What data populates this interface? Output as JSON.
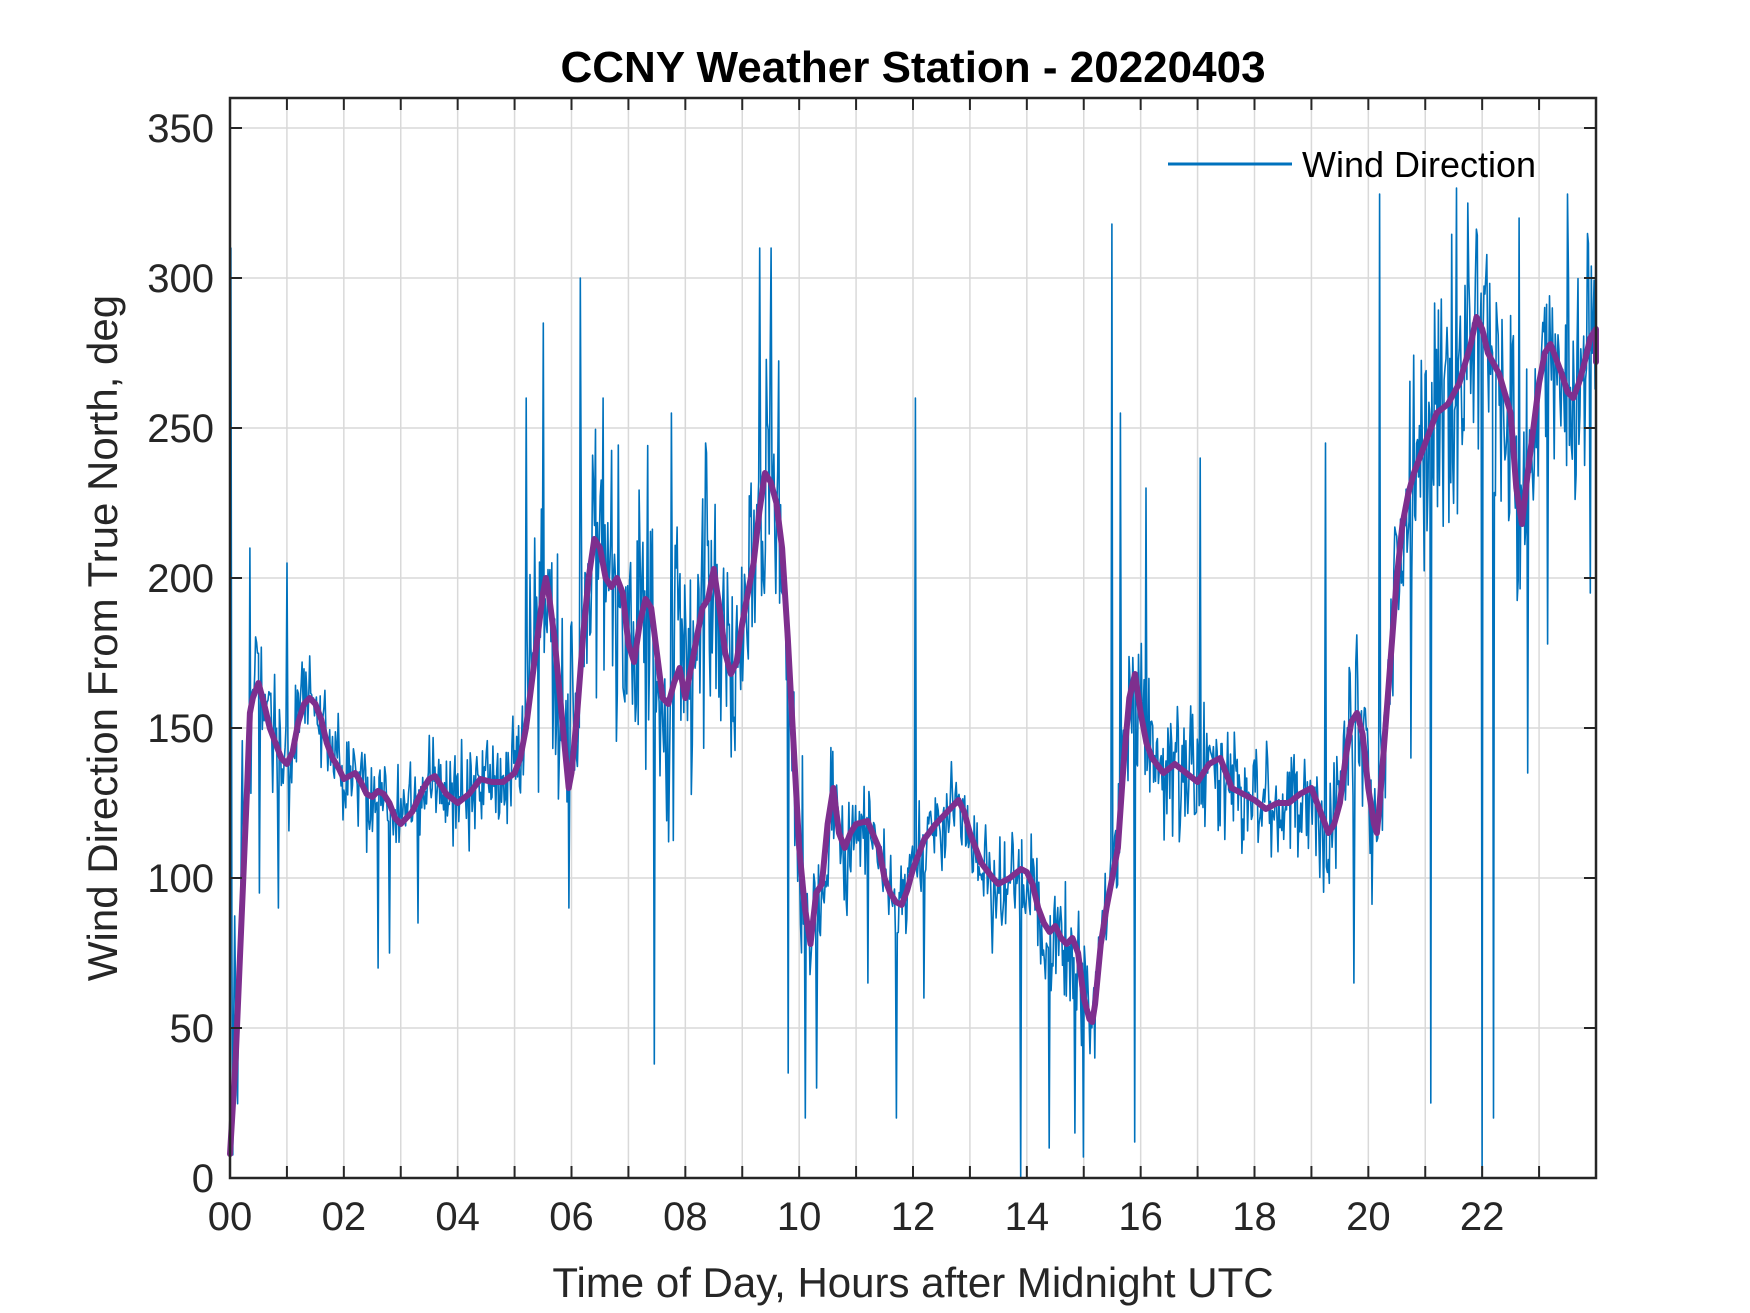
{
  "chart_data": {
    "type": "line",
    "title": "CCNY Weather Station - 20220403",
    "xlabel": "Time of Day, Hours after Midnight UTC",
    "ylabel": "Wind Direction From True North, deg",
    "xlim": [
      0,
      24
    ],
    "ylim": [
      0,
      360
    ],
    "x_ticks": [
      0,
      2,
      4,
      6,
      8,
      10,
      12,
      14,
      16,
      18,
      20,
      22
    ],
    "x_tick_labels": [
      "00",
      "02",
      "04",
      "06",
      "08",
      "10",
      "12",
      "14",
      "16",
      "18",
      "20",
      "22"
    ],
    "y_ticks": [
      0,
      50,
      100,
      150,
      200,
      250,
      300,
      350
    ],
    "y_tick_labels": [
      "0",
      "50",
      "100",
      "150",
      "200",
      "250",
      "300",
      "350"
    ],
    "grid": true,
    "minor_x_grid_step": 1,
    "legend": {
      "position": "top-right",
      "entries": [
        "Wind Direction"
      ]
    },
    "series": [
      {
        "name": "Wind Direction",
        "color": "#0072BD",
        "spread": [
          [
            0.0,
            150
          ],
          [
            0.25,
            80
          ],
          [
            0.5,
            30
          ],
          [
            1.0,
            35
          ],
          [
            1.5,
            25
          ],
          [
            2.0,
            20
          ],
          [
            3.0,
            25
          ],
          [
            4.0,
            22
          ],
          [
            5.0,
            25
          ],
          [
            5.5,
            70
          ],
          [
            6.0,
            75
          ],
          [
            6.5,
            70
          ],
          [
            7.0,
            70
          ],
          [
            8.0,
            70
          ],
          [
            9.0,
            75
          ],
          [
            9.5,
            70
          ],
          [
            10.0,
            60
          ],
          [
            10.5,
            30
          ],
          [
            11.0,
            25
          ],
          [
            12.0,
            25
          ],
          [
            13.0,
            22
          ],
          [
            14.0,
            30
          ],
          [
            15.0,
            35
          ],
          [
            16.0,
            35
          ],
          [
            17.0,
            30
          ],
          [
            18.0,
            28
          ],
          [
            19.0,
            28
          ],
          [
            20.0,
            45
          ],
          [
            21.0,
            60
          ],
          [
            22.0,
            65
          ],
          [
            23.0,
            55
          ],
          [
            24.0,
            55
          ]
        ],
        "spikes": [
          [
            0.02,
            310
          ],
          [
            0.35,
            210
          ],
          [
            0.52,
            95
          ],
          [
            0.85,
            90
          ],
          [
            1.0,
            205
          ],
          [
            2.6,
            70
          ],
          [
            2.8,
            75
          ],
          [
            3.3,
            85
          ],
          [
            5.2,
            260
          ],
          [
            5.5,
            285
          ],
          [
            5.95,
            90
          ],
          [
            6.15,
            300
          ],
          [
            6.55,
            260
          ],
          [
            7.45,
            38
          ],
          [
            7.75,
            255
          ],
          [
            8.35,
            245
          ],
          [
            9.3,
            310
          ],
          [
            9.5,
            310
          ],
          [
            9.8,
            35
          ],
          [
            10.1,
            20
          ],
          [
            10.3,
            30
          ],
          [
            11.2,
            65
          ],
          [
            11.7,
            20
          ],
          [
            12.05,
            260
          ],
          [
            12.2,
            60
          ],
          [
            13.4,
            75
          ],
          [
            13.9,
            0
          ],
          [
            14.4,
            10
          ],
          [
            14.85,
            15
          ],
          [
            15.0,
            7
          ],
          [
            15.2,
            40
          ],
          [
            15.5,
            318
          ],
          [
            15.65,
            255
          ],
          [
            15.9,
            12
          ],
          [
            16.1,
            230
          ],
          [
            17.05,
            240
          ],
          [
            19.25,
            245
          ],
          [
            19.75,
            65
          ],
          [
            20.2,
            328
          ],
          [
            20.75,
            140
          ],
          [
            21.1,
            25
          ],
          [
            21.55,
            330
          ],
          [
            21.75,
            325
          ],
          [
            22.0,
            0
          ],
          [
            22.2,
            20
          ],
          [
            22.8,
            135
          ],
          [
            22.65,
            320
          ],
          [
            23.15,
            178
          ],
          [
            23.5,
            328
          ],
          [
            23.9,
            195
          ]
        ]
      },
      {
        "name": "",
        "color": "#7E2F8E",
        "points": [
          [
            0.0,
            8
          ],
          [
            0.1,
            40
          ],
          [
            0.2,
            85
          ],
          [
            0.3,
            130
          ],
          [
            0.35,
            155
          ],
          [
            0.4,
            160
          ],
          [
            0.5,
            165
          ],
          [
            0.6,
            158
          ],
          [
            0.7,
            150
          ],
          [
            0.8,
            145
          ],
          [
            0.9,
            140
          ],
          [
            1.0,
            138
          ],
          [
            1.1,
            142
          ],
          [
            1.2,
            152
          ],
          [
            1.3,
            158
          ],
          [
            1.4,
            160
          ],
          [
            1.5,
            158
          ],
          [
            1.6,
            153
          ],
          [
            1.7,
            145
          ],
          [
            1.8,
            140
          ],
          [
            1.9,
            137
          ],
          [
            2.0,
            133
          ],
          [
            2.1,
            134
          ],
          [
            2.2,
            135
          ],
          [
            2.3,
            132
          ],
          [
            2.4,
            128
          ],
          [
            2.5,
            127
          ],
          [
            2.6,
            129
          ],
          [
            2.7,
            128
          ],
          [
            2.8,
            125
          ],
          [
            2.9,
            120
          ],
          [
            3.0,
            118
          ],
          [
            3.2,
            122
          ],
          [
            3.4,
            130
          ],
          [
            3.5,
            133
          ],
          [
            3.6,
            134
          ],
          [
            3.8,
            128
          ],
          [
            4.0,
            125
          ],
          [
            4.2,
            128
          ],
          [
            4.4,
            133
          ],
          [
            4.6,
            132
          ],
          [
            4.8,
            132
          ],
          [
            5.0,
            135
          ],
          [
            5.1,
            140
          ],
          [
            5.2,
            150
          ],
          [
            5.3,
            165
          ],
          [
            5.4,
            180
          ],
          [
            5.5,
            195
          ],
          [
            5.55,
            200
          ],
          [
            5.6,
            195
          ],
          [
            5.7,
            180
          ],
          [
            5.8,
            160
          ],
          [
            5.9,
            140
          ],
          [
            5.95,
            130
          ],
          [
            6.0,
            135
          ],
          [
            6.1,
            155
          ],
          [
            6.2,
            180
          ],
          [
            6.3,
            200
          ],
          [
            6.4,
            213
          ],
          [
            6.5,
            210
          ],
          [
            6.6,
            200
          ],
          [
            6.7,
            197
          ],
          [
            6.8,
            200
          ],
          [
            6.9,
            195
          ],
          [
            7.0,
            178
          ],
          [
            7.1,
            172
          ],
          [
            7.2,
            185
          ],
          [
            7.3,
            193
          ],
          [
            7.4,
            190
          ],
          [
            7.5,
            175
          ],
          [
            7.6,
            160
          ],
          [
            7.7,
            158
          ],
          [
            7.8,
            165
          ],
          [
            7.9,
            170
          ],
          [
            8.0,
            160
          ],
          [
            8.1,
            170
          ],
          [
            8.2,
            180
          ],
          [
            8.3,
            190
          ],
          [
            8.4,
            193
          ],
          [
            8.5,
            203
          ],
          [
            8.6,
            190
          ],
          [
            8.7,
            175
          ],
          [
            8.8,
            168
          ],
          [
            8.9,
            172
          ],
          [
            9.0,
            185
          ],
          [
            9.1,
            195
          ],
          [
            9.2,
            205
          ],
          [
            9.3,
            222
          ],
          [
            9.4,
            235
          ],
          [
            9.5,
            232
          ],
          [
            9.6,
            225
          ],
          [
            9.7,
            210
          ],
          [
            9.8,
            180
          ],
          [
            9.9,
            145
          ],
          [
            10.0,
            110
          ],
          [
            10.1,
            90
          ],
          [
            10.2,
            78
          ],
          [
            10.3,
            95
          ],
          [
            10.4,
            98
          ],
          [
            10.5,
            118
          ],
          [
            10.6,
            130
          ],
          [
            10.7,
            115
          ],
          [
            10.8,
            110
          ],
          [
            10.9,
            115
          ],
          [
            11.0,
            118
          ],
          [
            11.2,
            119
          ],
          [
            11.4,
            110
          ],
          [
            11.5,
            100
          ],
          [
            11.6,
            95
          ],
          [
            11.7,
            92
          ],
          [
            11.8,
            91
          ],
          [
            11.9,
            96
          ],
          [
            12.0,
            103
          ],
          [
            12.2,
            113
          ],
          [
            12.4,
            118
          ],
          [
            12.6,
            122
          ],
          [
            12.8,
            126
          ],
          [
            12.9,
            122
          ],
          [
            13.0,
            115
          ],
          [
            13.2,
            105
          ],
          [
            13.4,
            100
          ],
          [
            13.5,
            98
          ],
          [
            13.7,
            100
          ],
          [
            13.9,
            103
          ],
          [
            14.0,
            102
          ],
          [
            14.1,
            98
          ],
          [
            14.2,
            90
          ],
          [
            14.3,
            85
          ],
          [
            14.4,
            82
          ],
          [
            14.5,
            84
          ],
          [
            14.6,
            80
          ],
          [
            14.7,
            78
          ],
          [
            14.8,
            80
          ],
          [
            14.9,
            75
          ],
          [
            15.0,
            60
          ],
          [
            15.1,
            53
          ],
          [
            15.15,
            52
          ],
          [
            15.2,
            58
          ],
          [
            15.3,
            78
          ],
          [
            15.4,
            90
          ],
          [
            15.5,
            100
          ],
          [
            15.6,
            110
          ],
          [
            15.7,
            138
          ],
          [
            15.8,
            160
          ],
          [
            15.9,
            168
          ],
          [
            16.0,
            155
          ],
          [
            16.1,
            145
          ],
          [
            16.2,
            140
          ],
          [
            16.4,
            135
          ],
          [
            16.6,
            138
          ],
          [
            16.8,
            135
          ],
          [
            17.0,
            132
          ],
          [
            17.2,
            138
          ],
          [
            17.4,
            140
          ],
          [
            17.6,
            130
          ],
          [
            17.8,
            128
          ],
          [
            18.0,
            126
          ],
          [
            18.2,
            123
          ],
          [
            18.4,
            125
          ],
          [
            18.6,
            125
          ],
          [
            18.8,
            128
          ],
          [
            19.0,
            130
          ],
          [
            19.2,
            120
          ],
          [
            19.3,
            115
          ],
          [
            19.4,
            118
          ],
          [
            19.5,
            125
          ],
          [
            19.6,
            140
          ],
          [
            19.7,
            152
          ],
          [
            19.8,
            155
          ],
          [
            19.9,
            148
          ],
          [
            20.0,
            130
          ],
          [
            20.1,
            118
          ],
          [
            20.15,
            115
          ],
          [
            20.2,
            125
          ],
          [
            20.3,
            150
          ],
          [
            20.4,
            175
          ],
          [
            20.5,
            200
          ],
          [
            20.6,
            218
          ],
          [
            20.7,
            228
          ],
          [
            20.8,
            235
          ],
          [
            21.0,
            245
          ],
          [
            21.2,
            255
          ],
          [
            21.4,
            258
          ],
          [
            21.6,
            265
          ],
          [
            21.8,
            278
          ],
          [
            21.9,
            287
          ],
          [
            22.0,
            283
          ],
          [
            22.1,
            275
          ],
          [
            22.3,
            268
          ],
          [
            22.5,
            255
          ],
          [
            22.6,
            230
          ],
          [
            22.7,
            218
          ],
          [
            22.8,
            235
          ],
          [
            23.0,
            265
          ],
          [
            23.1,
            275
          ],
          [
            23.2,
            278
          ],
          [
            23.4,
            268
          ],
          [
            23.5,
            262
          ],
          [
            23.6,
            260
          ],
          [
            23.7,
            265
          ],
          [
            23.8,
            272
          ],
          [
            23.9,
            280
          ],
          [
            24.0,
            283
          ],
          [
            24.2,
            282
          ],
          [
            24.4,
            278
          ],
          [
            24.5,
            275
          ],
          [
            24.6,
            272
          ],
          [
            24.8,
            273
          ],
          [
            24.9,
            278
          ],
          [
            24.95,
            275
          ]
        ]
      }
    ]
  }
}
